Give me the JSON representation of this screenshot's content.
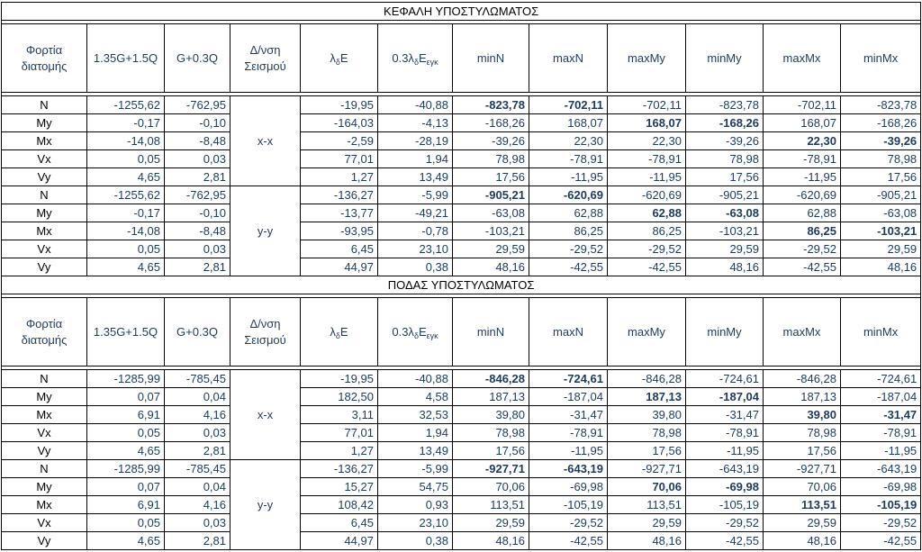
{
  "sections": [
    {
      "title": "ΚΕΦΑΛΗ ΥΠΟΣΤΥΛΩΜΑΤΟΣ",
      "headers": [
        "Φορτία διατομής",
        "1.35G+1.5Q",
        "G+0.3Q",
        "Δ/νση Σεισμού",
        "λδE",
        "0.3λδEεγκ",
        "minN",
        "maxN",
        "maxMy",
        "minMy",
        "maxMx",
        "minMx"
      ],
      "groups": [
        {
          "axis": "x-x",
          "rows": [
            {
              "label": "N",
              "v": [
                "-1255,62",
                "-762,95",
                "-19,95",
                "-40,88",
                "-823,78",
                "-702,11",
                "-702,11",
                "-823,78",
                "-702,11",
                "-823,78"
              ],
              "bold": [
                4,
                5
              ]
            },
            {
              "label": "My",
              "v": [
                "-0,17",
                "-0,10",
                "-164,03",
                "-4,13",
                "-168,26",
                "168,07",
                "168,07",
                "-168,26",
                "168,07",
                "-168,26"
              ],
              "bold": [
                6,
                7
              ]
            },
            {
              "label": "Mx",
              "v": [
                "-14,08",
                "-8,48",
                "-2,59",
                "-28,19",
                "-39,26",
                "22,30",
                "22,30",
                "-39,26",
                "22,30",
                "-39,26"
              ],
              "bold": [
                8,
                9
              ]
            },
            {
              "label": "Vx",
              "v": [
                "0,05",
                "0,03",
                "77,01",
                "1,94",
                "78,98",
                "-78,91",
                "-78,91",
                "78,98",
                "-78,91",
                "78,98"
              ],
              "bold": []
            },
            {
              "label": "Vy",
              "v": [
                "4,65",
                "2,81",
                "1,27",
                "13,49",
                "17,56",
                "-11,95",
                "-11,95",
                "17,56",
                "-11,95",
                "17,56"
              ],
              "bold": []
            }
          ]
        },
        {
          "axis": "y-y",
          "rows": [
            {
              "label": "N",
              "v": [
                "-1255,62",
                "-762,95",
                "-136,27",
                "-5,99",
                "-905,21",
                "-620,69",
                "-620,69",
                "-905,21",
                "-620,69",
                "-905,21"
              ],
              "bold": [
                4,
                5
              ]
            },
            {
              "label": "My",
              "v": [
                "-0,17",
                "-0,10",
                "-13,77",
                "-49,21",
                "-63,08",
                "62,88",
                "62,88",
                "-63,08",
                "62,88",
                "-63,08"
              ],
              "bold": [
                6,
                7
              ]
            },
            {
              "label": "Mx",
              "v": [
                "-14,08",
                "-8,48",
                "-93,95",
                "-0,78",
                "-103,21",
                "86,25",
                "86,25",
                "-103,21",
                "86,25",
                "-103,21"
              ],
              "bold": [
                8,
                9
              ]
            },
            {
              "label": "Vx",
              "v": [
                "0,05",
                "0,03",
                "6,45",
                "23,10",
                "29,59",
                "-29,52",
                "-29,52",
                "29,59",
                "-29,52",
                "29,59"
              ],
              "bold": []
            },
            {
              "label": "Vy",
              "v": [
                "4,65",
                "2,81",
                "44,97",
                "0,38",
                "48,16",
                "-42,55",
                "-42,55",
                "48,16",
                "-42,55",
                "48,16"
              ],
              "bold": []
            }
          ]
        }
      ]
    },
    {
      "title": "ΠΟΔΑΣ ΥΠΟΣΤΥΛΩΜΑΤΟΣ",
      "headers": [
        "Φορτία διατομής",
        "1.35G+1.5Q",
        "G+0.3Q",
        "Δ/νση Σεισμού",
        "λδE",
        "0.3λδEεγκ",
        "minN",
        "maxN",
        "maxMy",
        "minMy",
        "maxMx",
        "minMx"
      ],
      "groups": [
        {
          "axis": "x-x",
          "rows": [
            {
              "label": "N",
              "v": [
                "-1285,99",
                "-785,45",
                "-19,95",
                "-40,88",
                "-846,28",
                "-724,61",
                "-846,28",
                "-724,61",
                "-846,28",
                "-724,61"
              ],
              "bold": [
                4,
                5
              ]
            },
            {
              "label": "My",
              "v": [
                "0,07",
                "0,04",
                "182,50",
                "4,58",
                "187,13",
                "-187,04",
                "187,13",
                "-187,04",
                "187,13",
                "-187,04"
              ],
              "bold": [
                6,
                7
              ]
            },
            {
              "label": "Mx",
              "v": [
                "6,91",
                "4,16",
                "3,11",
                "32,53",
                "39,80",
                "-31,47",
                "39,80",
                "-31,47",
                "39,80",
                "-31,47"
              ],
              "bold": [
                8,
                9
              ]
            },
            {
              "label": "Vx",
              "v": [
                "0,05",
                "0,03",
                "77,01",
                "1,94",
                "78,98",
                "-78,91",
                "78,98",
                "-78,91",
                "78,98",
                "-78,91"
              ],
              "bold": []
            },
            {
              "label": "Vy",
              "v": [
                "4,65",
                "2,81",
                "1,27",
                "13,49",
                "17,56",
                "-11,95",
                "17,56",
                "-11,95",
                "17,56",
                "-11,95"
              ],
              "bold": []
            }
          ]
        },
        {
          "axis": "y-y",
          "rows": [
            {
              "label": "N",
              "v": [
                "-1285,99",
                "-785,45",
                "-136,27",
                "-5,99",
                "-927,71",
                "-643,19",
                "-927,71",
                "-643,19",
                "-927,71",
                "-643,19"
              ],
              "bold": [
                4,
                5
              ]
            },
            {
              "label": "My",
              "v": [
                "0,07",
                "0,04",
                "15,27",
                "54,75",
                "70,06",
                "-69,98",
                "70,06",
                "-69,98",
                "70,06",
                "-69,98"
              ],
              "bold": [
                6,
                7
              ]
            },
            {
              "label": "Mx",
              "v": [
                "6,91",
                "4,16",
                "108,42",
                "0,93",
                "113,51",
                "-105,19",
                "113,51",
                "-105,19",
                "113,51",
                "-105,19"
              ],
              "bold": [
                8,
                9
              ]
            },
            {
              "label": "Vx",
              "v": [
                "0,05",
                "0,03",
                "6,45",
                "23,10",
                "29,59",
                "-29,52",
                "29,59",
                "-29,52",
                "29,59",
                "-29,52"
              ],
              "bold": []
            },
            {
              "label": "Vy",
              "v": [
                "4,65",
                "2,81",
                "44,97",
                "0,38",
                "48,16",
                "-42,55",
                "48,16",
                "-42,55",
                "48,16",
                "-42,55"
              ],
              "bold": []
            }
          ]
        }
      ]
    }
  ]
}
